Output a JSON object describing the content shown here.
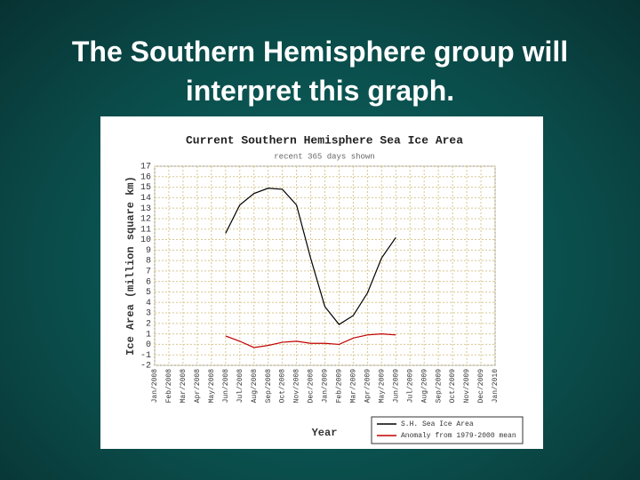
{
  "slide": {
    "title": "The Southern Hemisphere group will interpret this graph."
  },
  "chart_data": {
    "type": "line",
    "title": "Current Southern Hemisphere Sea Ice Area",
    "subtitle": "recent 365 days shown",
    "ylabel": "Ice Area (million square km)",
    "xlabel": "Year",
    "categories": [
      "Jan/2008",
      "Feb/2008",
      "Mar/2008",
      "Apr/2008",
      "May/2008",
      "Jun/2008",
      "Jul/2008",
      "Aug/2008",
      "Sep/2008",
      "Oct/2008",
      "Nov/2008",
      "Dec/2008",
      "Jan/2009",
      "Feb/2009",
      "Mar/2009",
      "Apr/2009",
      "May/2009",
      "Jun/2009",
      "Jul/2009",
      "Aug/2009",
      "Sep/2009",
      "Oct/2009",
      "Nov/2009",
      "Dec/2009",
      "Jan/2010"
    ],
    "x": [
      "Jun/2008",
      "Jul/2008",
      "Aug/2008",
      "Sep/2008",
      "Oct/2008",
      "Nov/2008",
      "Dec/2008",
      "Jan/2009",
      "Feb/2009",
      "Mar/2009",
      "Apr/2009",
      "May/2009",
      "Jun/2009"
    ],
    "series": [
      {
        "name": "S.H. Sea Ice Area",
        "color": "#000000",
        "values": [
          10.6,
          13.3,
          14.4,
          14.9,
          14.8,
          13.3,
          8.2,
          3.6,
          1.9,
          2.75,
          4.9,
          8.25,
          10.2
        ]
      },
      {
        "name": "Anomaly from 1979-2000 mean",
        "color": "#c00000",
        "values": [
          0.8,
          0.3,
          -0.3,
          -0.1,
          0.2,
          0.3,
          0.1,
          0.1,
          0.0,
          0.6,
          0.9,
          1.0,
          0.9
        ]
      }
    ],
    "ylim": [
      -2,
      17
    ],
    "yticks": [
      -2,
      -1,
      0,
      1,
      2,
      3,
      4,
      5,
      6,
      7,
      8,
      9,
      10,
      11,
      12,
      13,
      14,
      15,
      16,
      17
    ],
    "grid": true
  }
}
